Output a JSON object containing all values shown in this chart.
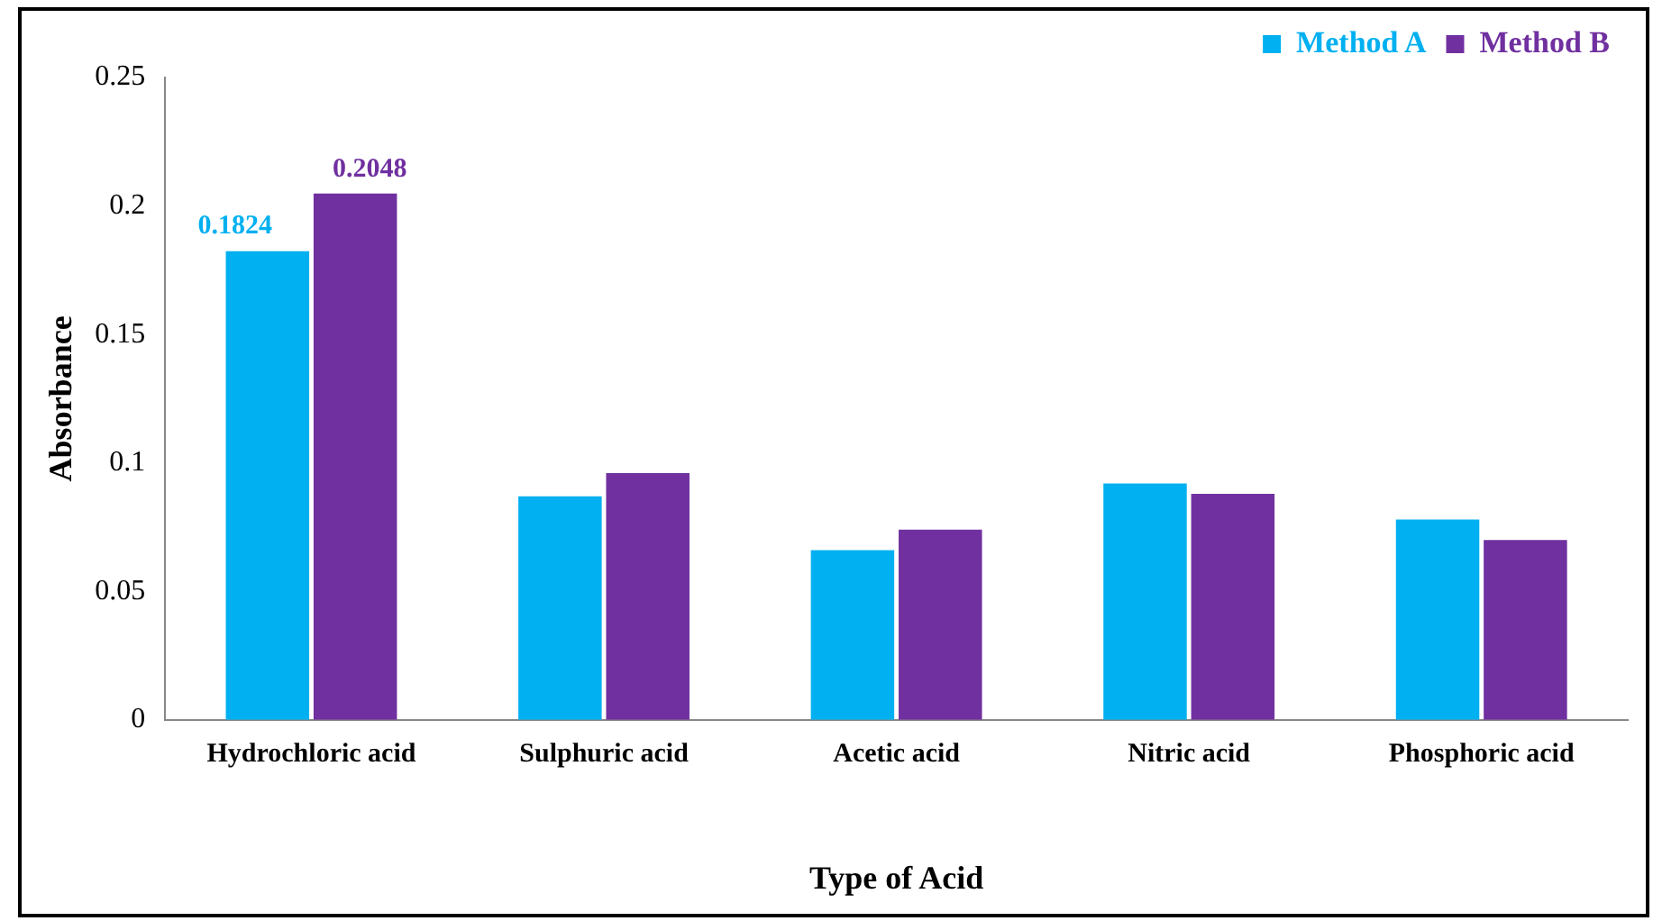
{
  "chart_data": {
    "type": "bar",
    "xlabel": "Type of Acid",
    "ylabel": "Absorbance",
    "categories": [
      "Hydrochloric acid",
      "Sulphuric acid",
      "Acetic acid",
      "Nitric acid",
      "Phosphoric acid"
    ],
    "series": [
      {
        "name": "Method A",
        "color": "#00b0f0",
        "values": [
          0.1824,
          0.087,
          0.066,
          0.092,
          0.078
        ],
        "value_labels": [
          "0.1824",
          null,
          null,
          null,
          null
        ]
      },
      {
        "name": "Method B",
        "color": "#7030a0",
        "values": [
          0.2048,
          0.096,
          0.074,
          0.088,
          0.07
        ],
        "value_labels": [
          "0.2048",
          null,
          null,
          null,
          null
        ]
      }
    ],
    "ylim": [
      0,
      0.25
    ],
    "yticks": [
      0,
      0.05,
      0.1,
      0.15,
      0.2,
      0.25
    ],
    "grid": false,
    "legend": "top right"
  }
}
